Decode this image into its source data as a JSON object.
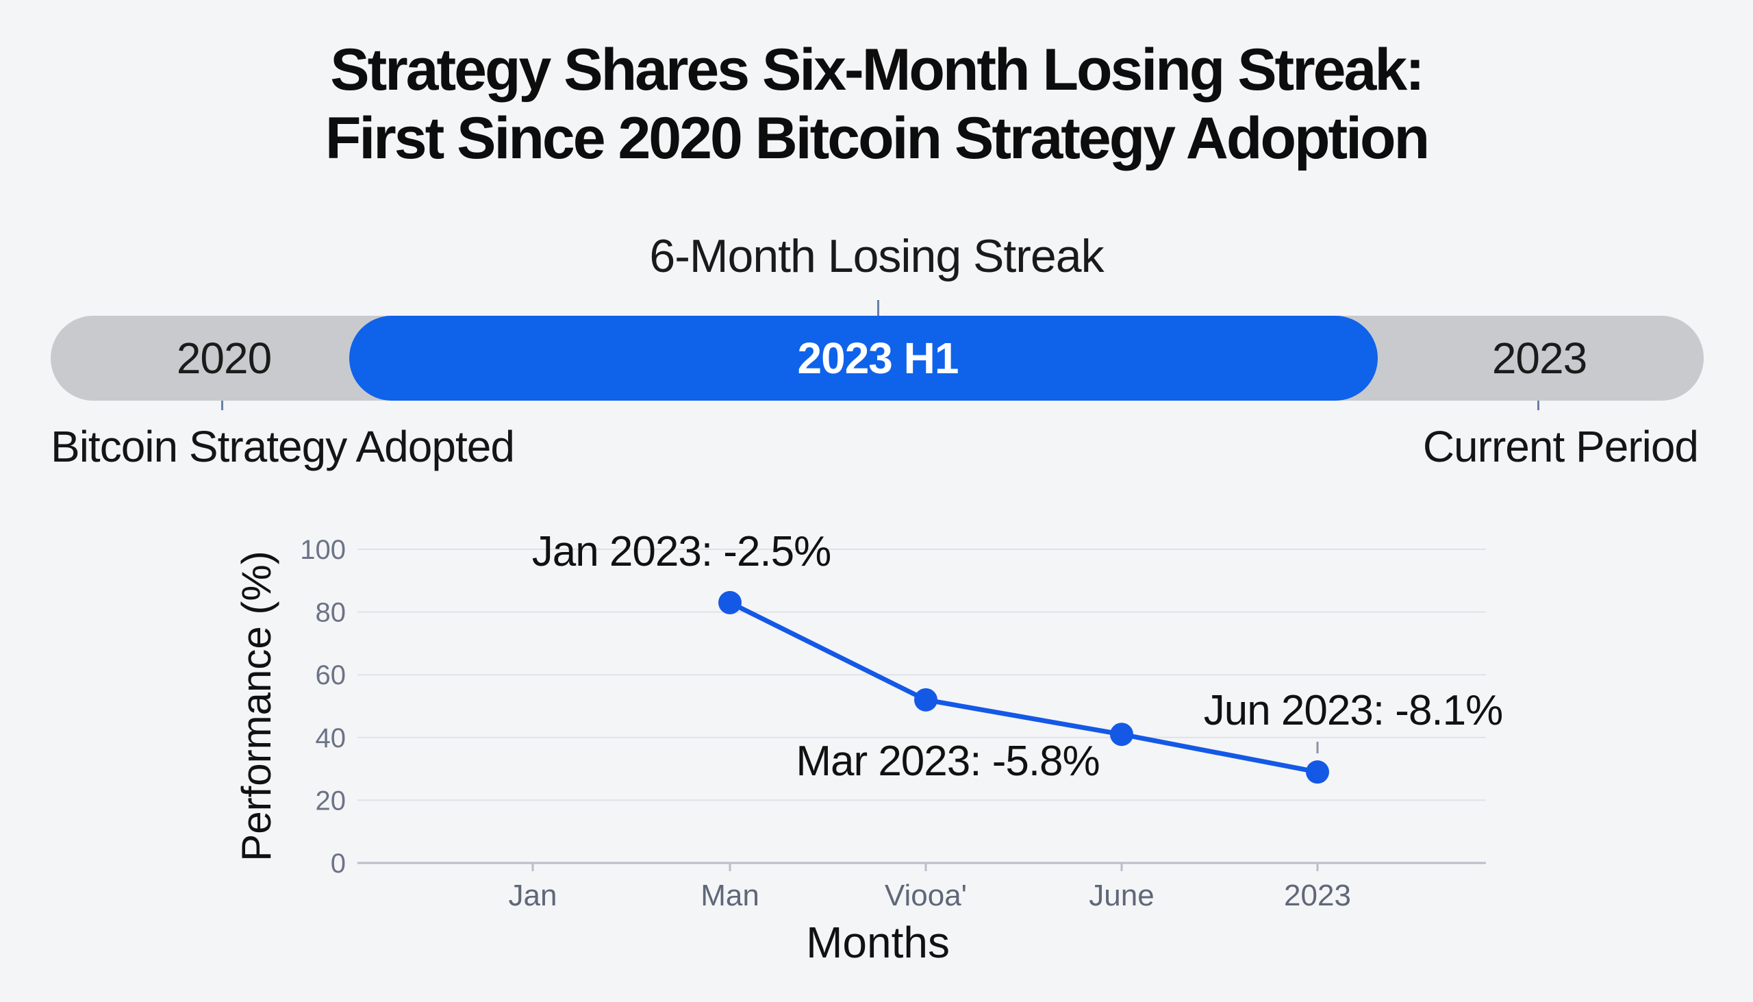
{
  "header": {
    "title_line1": "Strategy Shares Six-Month Losing Streak:",
    "title_line2": "First Since 2020 Bitcoin Strategy Adoption"
  },
  "timeline": {
    "streak_label": "6-Month Losing Streak",
    "start_label": "2020",
    "highlight_label": "2023 H1",
    "end_label": "2023",
    "start_caption": "Bitcoin Strategy Adopted",
    "end_caption": "Current Period",
    "colors": {
      "track": "#c9cacd",
      "highlight": "#0f62ea"
    }
  },
  "chart_data": {
    "type": "line",
    "categories": [
      "Jan",
      "Man",
      "Viooa'",
      "June",
      "2023"
    ],
    "series": [
      {
        "values": [
          null,
          83,
          52,
          41,
          29
        ],
        "color": "#1459e6"
      }
    ],
    "annotations": [
      {
        "text": "Jan 2023: -2.5%",
        "point_index": 1
      },
      {
        "text": "Mar 2023: -5.8%",
        "point_index": 2
      },
      {
        "text": "Jun 2023: -8.1%",
        "point_index": 4
      }
    ],
    "xlabel": "Months",
    "ylabel": "Performance (%)",
    "ylim": [
      0,
      100
    ],
    "yticks": [
      0,
      20,
      40,
      60,
      80,
      100
    ],
    "grid": true
  }
}
